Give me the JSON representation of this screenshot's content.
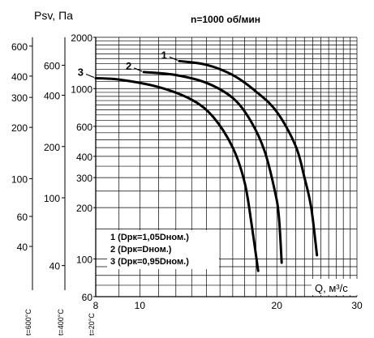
{
  "chart_data": {
    "type": "line",
    "title": "n=1000 об/мин",
    "ylabel": "Psv, Па",
    "xlabel": "Q, м³/с",
    "x_scale": "log",
    "y_scale": "log",
    "xlim": [
      8,
      30
    ],
    "ylim": [
      60,
      2000
    ],
    "grid": true,
    "x_ticks": [
      8,
      10,
      20,
      30
    ],
    "y_ticks": [
      60,
      100,
      200,
      300,
      400,
      600,
      1000,
      2000
    ],
    "aux_axes": [
      {
        "name": "t=600°C",
        "factor": 0.338,
        "ticks": [
          40,
          60,
          100,
          200,
          300,
          400,
          600
        ]
      },
      {
        "name": "t=400°C",
        "factor": 0.438,
        "ticks": [
          40,
          100,
          200,
          400,
          600
        ]
      },
      {
        "name": "t=20°C",
        "factor": 1,
        "ticks": []
      }
    ],
    "series": [
      {
        "label_number": "1",
        "legend": "1 (Dрк=1,05Dном.)",
        "points": [
          [
            12.2,
            1450
          ],
          [
            14,
            1380
          ],
          [
            16,
            1200
          ],
          [
            18,
            960
          ],
          [
            20,
            730
          ],
          [
            22,
            460
          ],
          [
            23,
            300
          ],
          [
            23.8,
            200
          ],
          [
            24.5,
            105
          ]
        ]
      },
      {
        "label_number": "2",
        "legend": "2 (Dрк=Dном.)",
        "points": [
          [
            10.2,
            1250
          ],
          [
            12,
            1200
          ],
          [
            14,
            1080
          ],
          [
            16,
            880
          ],
          [
            17.5,
            650
          ],
          [
            18.8,
            430
          ],
          [
            19.8,
            250
          ],
          [
            20.2,
            180
          ],
          [
            20.5,
            95
          ]
        ]
      },
      {
        "label_number": "3",
        "legend": "3 (Dрк=0,95Dном.)",
        "points": [
          [
            8,
            1150
          ],
          [
            9,
            1130
          ],
          [
            11,
            1020
          ],
          [
            13,
            860
          ],
          [
            14.5,
            680
          ],
          [
            16,
            450
          ],
          [
            17,
            280
          ],
          [
            17.6,
            160
          ],
          [
            18.2,
            85
          ]
        ]
      }
    ]
  }
}
